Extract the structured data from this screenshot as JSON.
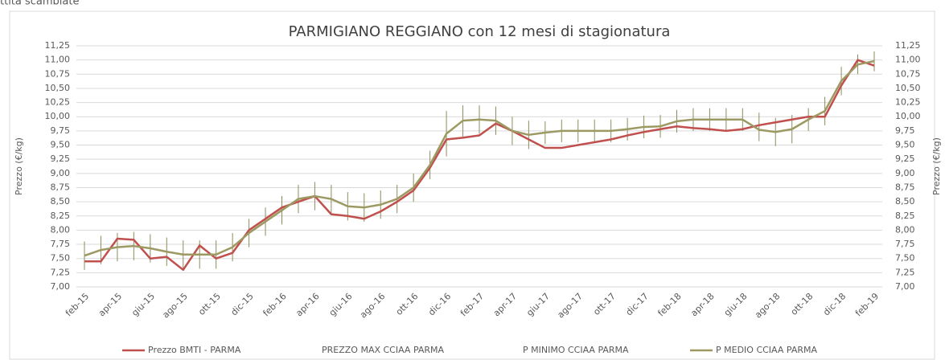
{
  "header_text": "ttità scambiate",
  "chart_data": {
    "type": "line",
    "title": "PARMIGIANO REGGIANO con 12 mesi di stagionatura",
    "ylabel": "Prezzo (€/kg)",
    "y2label": "Prezzo (€/kg)",
    "categories": [
      "feb-15",
      null,
      "apr-15",
      null,
      "giu-15",
      null,
      "ago-15",
      null,
      "ott-15",
      null,
      "dic-15",
      null,
      "feb-16",
      null,
      "apr-16",
      null,
      "giu-16",
      null,
      "ago-16",
      null,
      "ott-16",
      null,
      "dic-16",
      null,
      "feb-17",
      null,
      "apr-17",
      null,
      "giu-17",
      null,
      "ago-17",
      null,
      "ott-17",
      null,
      "dic-17",
      null,
      "feb-18",
      null,
      "apr-18",
      null,
      "giu-18",
      null,
      "ago-18",
      null,
      "ott-18",
      null,
      "dic-18",
      null,
      "feb-19"
    ],
    "series": [
      {
        "name": "Prezzo BMTI - PARMA",
        "type": "line",
        "color": "#c0504d",
        "values": [
          7.45,
          7.45,
          7.85,
          7.83,
          7.5,
          7.53,
          7.3,
          7.73,
          7.5,
          7.6,
          8.0,
          8.2,
          8.4,
          8.5,
          8.6,
          8.28,
          8.25,
          8.2,
          8.33,
          8.5,
          8.7,
          9.1,
          9.6,
          9.63,
          9.67,
          9.88,
          9.75,
          9.6,
          9.45,
          9.45,
          9.5,
          9.55,
          9.6,
          9.67,
          9.73,
          9.78,
          9.83,
          9.8,
          9.78,
          9.75,
          9.78,
          9.85,
          9.9,
          9.95,
          10.0,
          10.0,
          10.55,
          11.0,
          10.9
        ]
      },
      {
        "name": "PREZZO MAX CCIAA PARMA",
        "type": "hilo",
        "color": "#8c8c5a",
        "values": [
          7.8,
          7.9,
          7.95,
          7.97,
          7.93,
          7.87,
          7.82,
          7.82,
          7.82,
          7.95,
          8.2,
          8.4,
          8.6,
          8.8,
          8.85,
          8.8,
          8.67,
          8.65,
          8.7,
          8.8,
          9.0,
          9.4,
          10.1,
          10.2,
          10.2,
          10.18,
          10.0,
          9.93,
          9.92,
          9.95,
          9.95,
          9.95,
          9.95,
          9.98,
          10.02,
          10.03,
          10.12,
          10.15,
          10.15,
          10.15,
          10.15,
          10.07,
          9.98,
          10.03,
          10.15,
          10.35,
          10.88,
          11.1,
          11.15
        ]
      },
      {
        "name": "P MINIMO CCIAA PARMA",
        "type": "hilo",
        "color": "#8c8c5a",
        "values": [
          7.3,
          7.4,
          7.45,
          7.47,
          7.43,
          7.37,
          7.32,
          7.32,
          7.32,
          7.45,
          7.7,
          7.9,
          8.1,
          8.3,
          8.35,
          8.3,
          8.17,
          8.15,
          8.2,
          8.3,
          8.5,
          8.9,
          9.3,
          9.65,
          9.7,
          9.68,
          9.5,
          9.43,
          9.52,
          9.55,
          9.55,
          9.55,
          9.55,
          9.58,
          9.62,
          9.63,
          9.72,
          9.75,
          9.75,
          9.75,
          9.75,
          9.57,
          9.48,
          9.53,
          9.75,
          9.85,
          10.38,
          10.75,
          10.8
        ]
      },
      {
        "name": "P MEDIO CCIAA PARMA",
        "type": "line",
        "color": "#9c9a62",
        "values": [
          7.55,
          7.65,
          7.7,
          7.72,
          7.68,
          7.62,
          7.57,
          7.57,
          7.57,
          7.7,
          7.95,
          8.15,
          8.35,
          8.55,
          8.6,
          8.55,
          8.42,
          8.4,
          8.45,
          8.55,
          8.75,
          9.15,
          9.7,
          9.93,
          9.95,
          9.93,
          9.75,
          9.68,
          9.72,
          9.75,
          9.75,
          9.75,
          9.75,
          9.78,
          9.82,
          9.83,
          9.92,
          9.95,
          9.95,
          9.95,
          9.95,
          9.77,
          9.73,
          9.78,
          9.95,
          10.1,
          10.63,
          10.92,
          10.98
        ]
      }
    ],
    "ylim": [
      7,
      11.25
    ],
    "yticks": [
      {
        "value": 7,
        "label": "7,00"
      },
      {
        "value": 7.25,
        "label": "7,25"
      },
      {
        "value": 7.5,
        "label": "7,50"
      },
      {
        "value": 7.75,
        "label": "7,75"
      },
      {
        "value": 8,
        "label": "8,00"
      },
      {
        "value": 8.25,
        "label": "8,25"
      },
      {
        "value": 8.5,
        "label": "8,50"
      },
      {
        "value": 8.75,
        "label": "8,75"
      },
      {
        "value": 9,
        "label": "9,00"
      },
      {
        "value": 9.25,
        "label": "9,25"
      },
      {
        "value": 9.5,
        "label": "9,50"
      },
      {
        "value": 9.75,
        "label": "9,75"
      },
      {
        "value": 10,
        "label": "10,00"
      },
      {
        "value": 10.25,
        "label": "10,25"
      },
      {
        "value": 10.5,
        "label": "10,50"
      },
      {
        "value": 10.75,
        "label": "10,75"
      },
      {
        "value": 11,
        "label": "11,00"
      },
      {
        "value": 11.25,
        "label": "11,25"
      }
    ],
    "y2lim": [
      7,
      11.25
    ],
    "y2ticks": [
      {
        "value": 7,
        "label": "7,00"
      },
      {
        "value": 7.25,
        "label": "7,25"
      },
      {
        "value": 7.5,
        "label": "7,50"
      },
      {
        "value": 7.75,
        "label": "7,75"
      },
      {
        "value": 8,
        "label": "8,00"
      },
      {
        "value": 8.25,
        "label": "8,25"
      },
      {
        "value": 8.5,
        "label": "8,50"
      },
      {
        "value": 8.75,
        "label": "8,75"
      },
      {
        "value": 9,
        "label": "9,00"
      },
      {
        "value": 9.25,
        "label": "9,25"
      },
      {
        "value": 9.5,
        "label": "9,50"
      },
      {
        "value": 9.75,
        "label": "9,75"
      },
      {
        "value": 10,
        "label": "10,00"
      },
      {
        "value": 10.25,
        "label": "10,25"
      },
      {
        "value": 10.5,
        "label": "10,50"
      },
      {
        "value": 10.75,
        "label": "10,75"
      },
      {
        "value": 11,
        "label": "11,00"
      },
      {
        "value": 11.25,
        "label": "11,25"
      }
    ],
    "grid": true,
    "legend": "bottom"
  }
}
